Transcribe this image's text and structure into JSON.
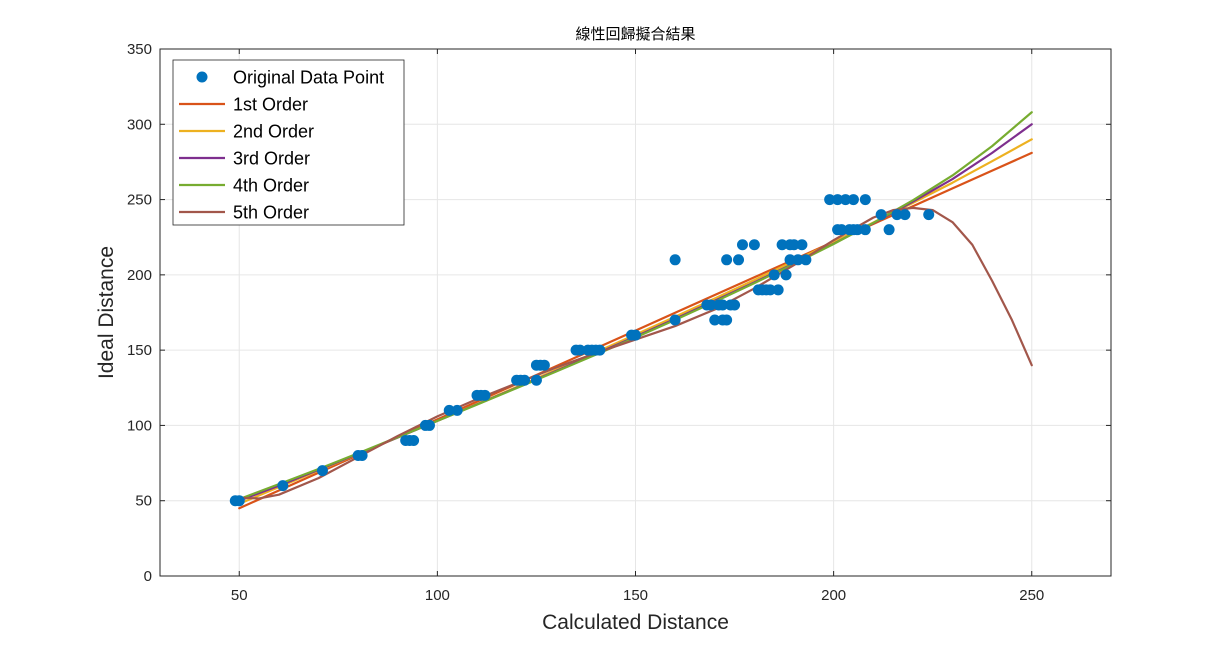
{
  "chart_data": {
    "type": "scatter",
    "title": "線性回歸擬合結果",
    "xlabel": "Calculated Distance",
    "ylabel": "Ideal Distance",
    "xlim": [
      30,
      270
    ],
    "ylim": [
      0,
      350
    ],
    "xticks": [
      50,
      100,
      150,
      200,
      250
    ],
    "yticks": [
      0,
      50,
      100,
      150,
      200,
      250,
      300,
      350
    ],
    "grid": true,
    "legend_position": "top-left",
    "points": {
      "name": "Original Data Point",
      "color": "#0072BD",
      "x": [
        49,
        50,
        61,
        71,
        80,
        81,
        92,
        93,
        94,
        97,
        98,
        103,
        105,
        110,
        111,
        112,
        120,
        121,
        122,
        125,
        125,
        126,
        127,
        135,
        136,
        138,
        139,
        140,
        141,
        149,
        150,
        160,
        160,
        168,
        169,
        170,
        171,
        172,
        172,
        173,
        173,
        174,
        175,
        176,
        177,
        180,
        181,
        182,
        183,
        184,
        185,
        186,
        187,
        188,
        189,
        189,
        190,
        191,
        192,
        193,
        199,
        201,
        201,
        202,
        203,
        204,
        205,
        205,
        206,
        208,
        208,
        212,
        214,
        216,
        218,
        224
      ],
      "y": [
        50,
        50,
        60,
        70,
        80,
        80,
        90,
        90,
        90,
        100,
        100,
        110,
        110,
        120,
        120,
        120,
        130,
        130,
        130,
        130,
        140,
        140,
        140,
        150,
        150,
        150,
        150,
        150,
        150,
        160,
        160,
        210,
        170,
        180,
        180,
        170,
        180,
        170,
        180,
        210,
        170,
        180,
        180,
        210,
        220,
        220,
        190,
        190,
        190,
        190,
        200,
        190,
        220,
        200,
        220,
        210,
        220,
        210,
        220,
        210,
        250,
        250,
        230,
        230,
        250,
        230,
        250,
        230,
        230,
        250,
        230,
        240,
        230,
        240,
        240,
        240
      ]
    },
    "series": [
      {
        "name": "1st Order",
        "color": "#D95319",
        "x": [
          50,
          60,
          70,
          80,
          90,
          100,
          110,
          120,
          130,
          140,
          150,
          160,
          170,
          180,
          190,
          200,
          210,
          220,
          230,
          240,
          250
        ],
        "y": [
          45,
          56.8,
          68.6,
          80.4,
          92.2,
          104,
          115.8,
          127.6,
          139.4,
          151.2,
          163,
          174.8,
          186.6,
          198.4,
          210.2,
          222,
          233.8,
          245.6,
          257.4,
          269.2,
          281
        ]
      },
      {
        "name": "2nd Order",
        "color": "#EDB120",
        "x": [
          50,
          60,
          70,
          80,
          90,
          100,
          110,
          120,
          130,
          140,
          150,
          160,
          170,
          180,
          190,
          200,
          210,
          220,
          230,
          240,
          250
        ],
        "y": [
          48,
          59,
          70,
          81,
          92,
          103,
          114.2,
          125.5,
          137,
          148.6,
          160.3,
          172.2,
          184.3,
          196.6,
          209.1,
          221.8,
          234.7,
          247.8,
          261.2,
          275.5,
          290
        ]
      },
      {
        "name": "3rd Order",
        "color": "#7E2F8E",
        "x": [
          50,
          60,
          70,
          80,
          90,
          100,
          110,
          120,
          130,
          140,
          150,
          160,
          170,
          180,
          190,
          200,
          210,
          220,
          230,
          240,
          250
        ],
        "y": [
          50,
          60,
          70.5,
          81.2,
          92,
          103,
          114,
          125,
          136.2,
          147.5,
          159,
          170.8,
          182.8,
          195,
          207.6,
          220.7,
          234.3,
          248.6,
          263.6,
          281,
          300
        ]
      },
      {
        "name": "4th Order",
        "color": "#77AC30",
        "x": [
          50,
          60,
          70,
          80,
          90,
          100,
          110,
          120,
          130,
          140,
          150,
          160,
          170,
          180,
          190,
          200,
          210,
          220,
          230,
          240,
          250
        ],
        "y": [
          51,
          61,
          71,
          81.5,
          92.2,
          103,
          113.8,
          124.8,
          135.8,
          147,
          158.4,
          170.1,
          182.1,
          194.5,
          207.3,
          220.5,
          234.5,
          249.5,
          266,
          285.5,
          308
        ]
      },
      {
        "name": "5th Order",
        "color": "#A2574B",
        "x": [
          50,
          55,
          60,
          70,
          80,
          90,
          100,
          110,
          120,
          130,
          140,
          150,
          160,
          170,
          180,
          190,
          200,
          210,
          215,
          220,
          225,
          230,
          235,
          240,
          245,
          250
        ],
        "y": [
          52,
          51.5,
          54,
          65,
          79,
          93,
          106,
          117.5,
          128,
          138.5,
          148,
          157,
          166,
          177,
          191,
          206.5,
          223,
          238,
          243,
          244.5,
          243,
          235,
          220,
          196,
          170,
          140
        ]
      }
    ]
  }
}
